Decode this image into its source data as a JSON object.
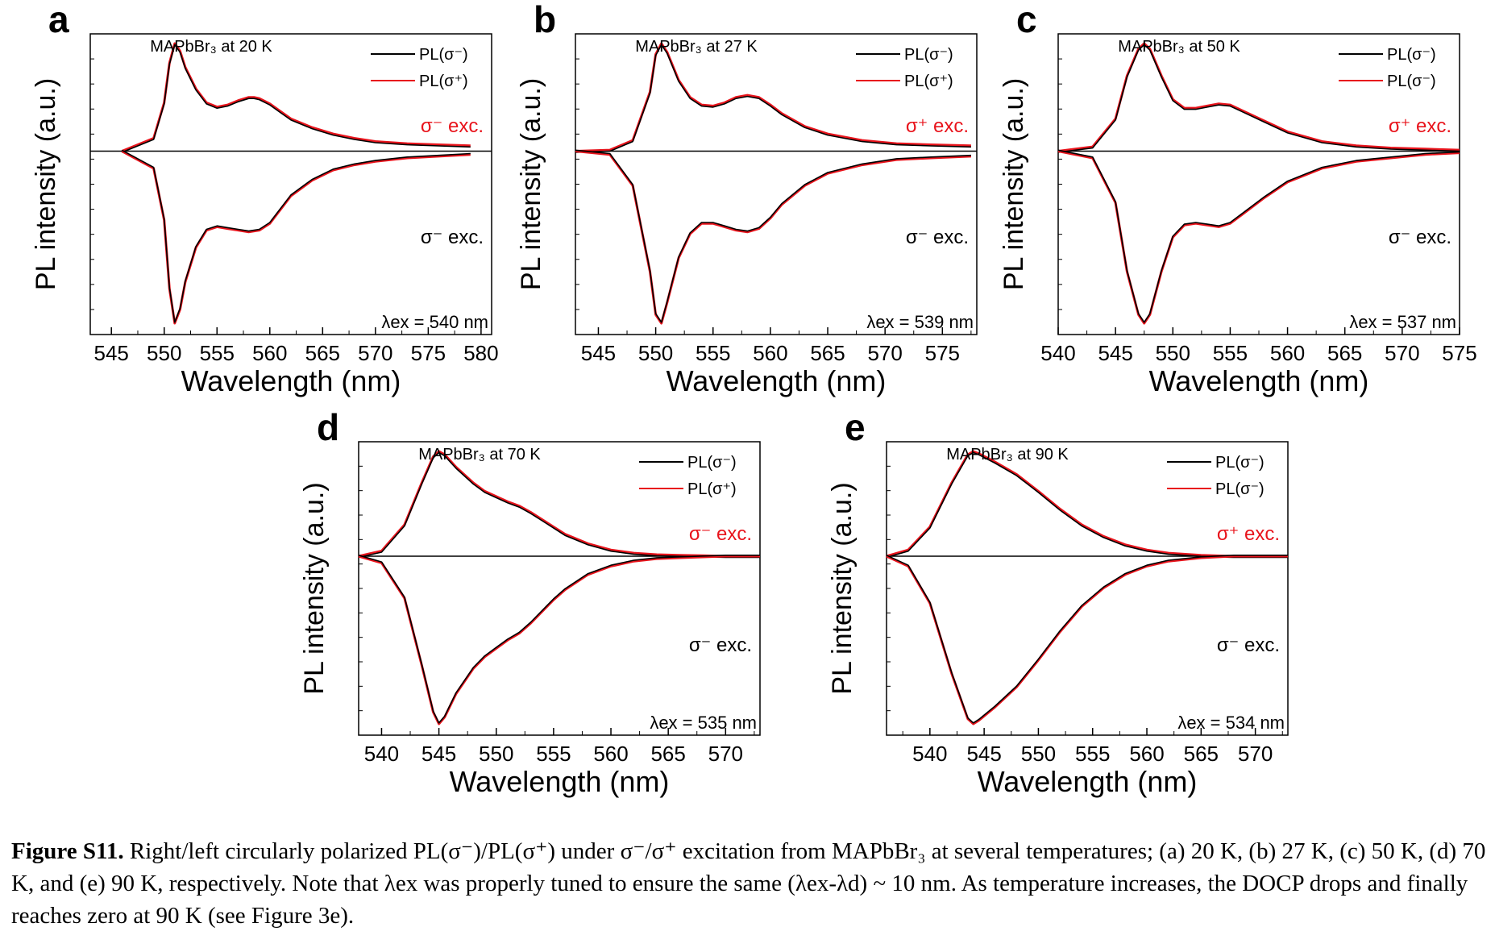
{
  "common": {
    "xlabel": "Wavelength (nm)",
    "ylabel": "PL intensity (a.u.)",
    "exc_label_top_suffix": " exc.",
    "exc_label_bottom": "σ⁻ exc.",
    "colors": {
      "black_series": "#000000",
      "red_series": "#e8141c",
      "red_text": "#e8141c"
    }
  },
  "chart_data": [
    {
      "panel": "a",
      "type": "line",
      "title": "MAPbBr₃ at 20 K",
      "xlim": [
        543,
        581
      ],
      "xticks": [
        545,
        550,
        555,
        560,
        565,
        570,
        575,
        580
      ],
      "exc_top": "σ⁻ exc.",
      "lambda_ex_text": "λex = 540 nm",
      "legend": [
        "PL(σ⁻)",
        "PL(σ⁺)"
      ],
      "upper_series": {
        "x": [
          546,
          549,
          550,
          550.5,
          551,
          551.5,
          552,
          553,
          554,
          555,
          556,
          557,
          558,
          558.5,
          559,
          560,
          561,
          562,
          564,
          566,
          568,
          570,
          573,
          576,
          579
        ],
        "y": [
          0.0,
          0.12,
          0.45,
          0.82,
          1.0,
          0.93,
          0.78,
          0.58,
          0.45,
          0.41,
          0.43,
          0.47,
          0.5,
          0.5,
          0.49,
          0.44,
          0.37,
          0.3,
          0.22,
          0.16,
          0.12,
          0.09,
          0.07,
          0.06,
          0.05
        ]
      },
      "lower_series": {
        "x": [
          546,
          549,
          550,
          550.5,
          551,
          551.5,
          552,
          553,
          554,
          555,
          556,
          557,
          558,
          559,
          560,
          561,
          562,
          564,
          566,
          568,
          570,
          573,
          576,
          579
        ],
        "y": [
          0.0,
          -0.1,
          -0.4,
          -0.8,
          -1.0,
          -0.92,
          -0.76,
          -0.56,
          -0.46,
          -0.44,
          -0.45,
          -0.46,
          -0.47,
          -0.46,
          -0.42,
          -0.34,
          -0.26,
          -0.17,
          -0.11,
          -0.08,
          -0.06,
          -0.04,
          -0.03,
          -0.02
        ]
      }
    },
    {
      "panel": "b",
      "type": "line",
      "title": "MAPbBr₃ at 27 K",
      "xlim": [
        543,
        578
      ],
      "xticks": [
        545,
        550,
        555,
        560,
        565,
        570,
        575
      ],
      "exc_top": "σ⁺ exc.",
      "lambda_ex_text": "λex = 539 nm",
      "legend": [
        "PL(σ⁻)",
        "PL(σ⁺)"
      ],
      "upper_series": {
        "x": [
          543,
          546,
          548,
          549.5,
          550,
          550.5,
          551,
          552,
          553,
          554,
          555,
          556,
          557,
          558,
          559,
          560,
          561,
          563,
          565,
          568,
          571,
          574,
          577.5
        ],
        "y": [
          0.0,
          0.01,
          0.1,
          0.55,
          0.9,
          1.0,
          0.92,
          0.66,
          0.5,
          0.43,
          0.42,
          0.45,
          0.5,
          0.52,
          0.5,
          0.43,
          0.35,
          0.23,
          0.16,
          0.1,
          0.07,
          0.06,
          0.05
        ]
      },
      "lower_series": {
        "x": [
          543,
          546,
          548,
          549.5,
          550,
          550.5,
          551,
          552,
          553,
          554,
          555,
          556,
          557,
          558,
          559,
          560,
          561,
          563,
          565,
          568,
          571,
          574,
          577.5
        ],
        "y": [
          0.0,
          -0.02,
          -0.2,
          -0.7,
          -0.95,
          -1.0,
          -0.88,
          -0.62,
          -0.48,
          -0.42,
          -0.42,
          -0.44,
          -0.46,
          -0.47,
          -0.45,
          -0.39,
          -0.31,
          -0.2,
          -0.13,
          -0.08,
          -0.05,
          -0.04,
          -0.03
        ]
      }
    },
    {
      "panel": "c",
      "type": "line",
      "title": "MAPbBr₃ at 50 K",
      "xlim": [
        540,
        575
      ],
      "xticks": [
        540,
        545,
        550,
        555,
        560,
        565,
        570,
        575
      ],
      "exc_top": "σ⁺ exc.",
      "lambda_ex_text": "λex = 537 nm",
      "legend": [
        "PL(σ⁻)",
        "PL(σ⁻)"
      ],
      "upper_series": {
        "x": [
          540,
          543,
          545,
          546,
          547,
          547.5,
          548,
          549,
          550,
          551,
          552,
          553,
          554,
          555,
          556,
          558,
          560,
          563,
          566,
          569,
          572,
          575
        ],
        "y": [
          0.0,
          0.04,
          0.3,
          0.7,
          0.95,
          1.0,
          0.95,
          0.7,
          0.48,
          0.4,
          0.4,
          0.42,
          0.44,
          0.43,
          0.38,
          0.28,
          0.18,
          0.09,
          0.05,
          0.03,
          0.02,
          0.01
        ]
      },
      "lower_series": {
        "x": [
          540,
          543,
          545,
          546,
          547,
          547.5,
          548,
          549,
          550,
          551,
          552,
          553,
          554,
          555,
          556,
          558,
          560,
          563,
          566,
          569,
          572,
          575
        ],
        "y": [
          0.0,
          -0.04,
          -0.3,
          -0.7,
          -0.95,
          -1.0,
          -0.95,
          -0.7,
          -0.5,
          -0.43,
          -0.42,
          -0.43,
          -0.44,
          -0.42,
          -0.37,
          -0.27,
          -0.18,
          -0.1,
          -0.06,
          -0.04,
          -0.02,
          -0.01
        ]
      }
    },
    {
      "panel": "d",
      "type": "line",
      "title": "MAPbBr₃ at 70 K",
      "xlim": [
        538,
        573
      ],
      "xticks": [
        540,
        545,
        550,
        555,
        560,
        565,
        570
      ],
      "exc_top": "σ⁻ exc.",
      "lambda_ex_text": "λex = 535 nm",
      "legend": [
        "PL(σ⁻)",
        "PL(σ⁺)"
      ],
      "upper_series": {
        "x": [
          538,
          540,
          542,
          543.5,
          544.5,
          545,
          545.5,
          546.5,
          548,
          549,
          550,
          551,
          552,
          553,
          554,
          555,
          556,
          558,
          560,
          562,
          564,
          566,
          568,
          570,
          573
        ],
        "y": [
          0.0,
          0.05,
          0.3,
          0.7,
          0.95,
          1.0,
          0.97,
          0.85,
          0.7,
          0.62,
          0.57,
          0.52,
          0.48,
          0.42,
          0.35,
          0.28,
          0.21,
          0.12,
          0.06,
          0.03,
          0.015,
          0.01,
          0.005,
          0.0,
          0.0
        ]
      },
      "lower_series": {
        "x": [
          538,
          540,
          542,
          543.5,
          544.5,
          545,
          545.5,
          546.5,
          548,
          549,
          550,
          551,
          552,
          553,
          554,
          555,
          556,
          558,
          560,
          562,
          564,
          566,
          568,
          570,
          573
        ],
        "y": [
          0.0,
          -0.04,
          -0.25,
          -0.65,
          -0.93,
          -1.0,
          -0.96,
          -0.82,
          -0.67,
          -0.6,
          -0.55,
          -0.5,
          -0.46,
          -0.4,
          -0.33,
          -0.26,
          -0.2,
          -0.11,
          -0.06,
          -0.03,
          -0.015,
          -0.01,
          -0.005,
          0.0,
          0.0
        ]
      }
    },
    {
      "panel": "e",
      "type": "line",
      "title": "MAPbBr₃ at 90 K",
      "xlim": [
        536,
        573
      ],
      "xticks": [
        540,
        545,
        550,
        555,
        560,
        565,
        570
      ],
      "exc_top": "σ⁺ exc.",
      "lambda_ex_text": "λex = 534 nm",
      "legend": [
        "PL(σ⁻)",
        "PL(σ⁻)"
      ],
      "upper_series": {
        "x": [
          536,
          538,
          540,
          542,
          543.5,
          544,
          544.5,
          546,
          548,
          550,
          552,
          554,
          556,
          558,
          560,
          562,
          565,
          568,
          573
        ],
        "y": [
          0.0,
          0.06,
          0.28,
          0.7,
          0.97,
          1.0,
          0.98,
          0.9,
          0.78,
          0.62,
          0.45,
          0.3,
          0.19,
          0.11,
          0.06,
          0.03,
          0.01,
          0.0,
          0.0
        ]
      },
      "lower_series": {
        "x": [
          536,
          538,
          540,
          542,
          543.5,
          544,
          544.5,
          546,
          548,
          550,
          552,
          554,
          556,
          558,
          560,
          562,
          565,
          568,
          573
        ],
        "y": [
          0.0,
          -0.06,
          -0.28,
          -0.7,
          -0.97,
          -1.0,
          -0.98,
          -0.9,
          -0.78,
          -0.62,
          -0.45,
          -0.3,
          -0.19,
          -0.11,
          -0.06,
          -0.03,
          -0.01,
          0.0,
          0.0
        ]
      }
    }
  ],
  "caption": {
    "label": "Figure S11.",
    "text": " Right/left circularly polarized PL(σ⁻)/PL(σ⁺) under σ⁻/σ⁺ excitation from MAPbBr₃ at several temperatures; (a) 20 K, (b) 27 K, (c) 50 K, (d) 70 K, and (e) 90 K, respectively. Note that λex was properly tuned to ensure the same (λex-λd) ~ 10 nm. As temperature increases, the DOCP drops and finally reaches zero at 90 K (see Figure 3e)."
  }
}
